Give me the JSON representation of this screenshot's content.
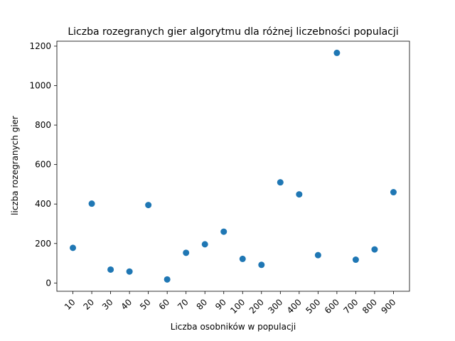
{
  "chart_data": {
    "type": "scatter",
    "title": "Liczba rozegranych gier algorytmu dla różnej liczebności populacji",
    "xlabel": "Liczba osobników w populacji",
    "ylabel": "liczba rozegranych gier",
    "categories": [
      "10",
      "20",
      "30",
      "40",
      "50",
      "60",
      "70",
      "80",
      "90",
      "100",
      "200",
      "300",
      "400",
      "500",
      "600",
      "700",
      "800",
      "900"
    ],
    "values": [
      178,
      402,
      68,
      58,
      395,
      18,
      153,
      196,
      260,
      122,
      92,
      510,
      449,
      141,
      1166,
      118,
      170,
      460
    ],
    "yticks": [
      0,
      200,
      400,
      600,
      800,
      1000,
      1200
    ],
    "ylim": [
      -42,
      1225
    ],
    "marker_color": "#1f77b4",
    "grid": false
  }
}
